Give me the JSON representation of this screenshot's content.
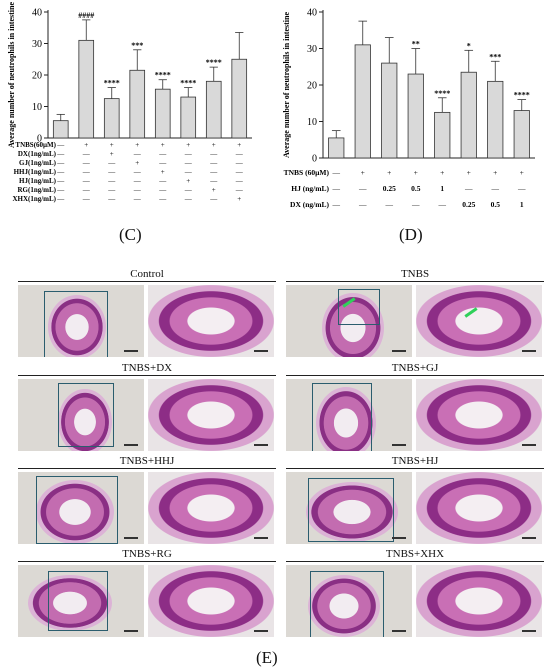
{
  "panel_labels": {
    "c": "(C)",
    "d": "(D)",
    "e": "(E)"
  },
  "chart_data": [
    {
      "panel": "C",
      "type": "bar",
      "ylabel": "Average number of neutrophils in intestine",
      "ylim": [
        0,
        40
      ],
      "yticks": [
        0,
        10,
        20,
        30,
        40
      ],
      "values": [
        5.5,
        31,
        12.5,
        21.5,
        15.5,
        13,
        18,
        25
      ],
      "errors": [
        2,
        6.5,
        3.5,
        6.5,
        3,
        3,
        4.5,
        8.5
      ],
      "significance": [
        "",
        "####",
        "****",
        "***",
        "****",
        "****",
        "****",
        ""
      ],
      "condition_rows": [
        {
          "label": "TNBS(60µM)",
          "marks": [
            "—",
            "+",
            "+",
            "+",
            "+",
            "+",
            "+",
            "+"
          ]
        },
        {
          "label": "DX(1ng/mL)",
          "marks": [
            "—",
            "—",
            "+",
            "—",
            "—",
            "—",
            "—",
            "—"
          ]
        },
        {
          "label": "GJ(1ng/mL)",
          "marks": [
            "—",
            "—",
            "—",
            "+",
            "—",
            "—",
            "—",
            "—"
          ]
        },
        {
          "label": "HHJ(1ng/mL)",
          "marks": [
            "—",
            "—",
            "—",
            "—",
            "+",
            "—",
            "—",
            "—"
          ]
        },
        {
          "label": "HJ(1ng/mL)",
          "marks": [
            "—",
            "—",
            "—",
            "—",
            "—",
            "+",
            "—",
            "—"
          ]
        },
        {
          "label": "RG(1ng/mL)",
          "marks": [
            "—",
            "—",
            "—",
            "—",
            "—",
            "—",
            "+",
            "—"
          ]
        },
        {
          "label": "XHX(1ng/mL)",
          "marks": [
            "—",
            "—",
            "—",
            "—",
            "—",
            "—",
            "—",
            "+"
          ]
        }
      ]
    },
    {
      "panel": "D",
      "type": "bar",
      "ylabel": "Average number of neutrophils in intestine",
      "ylim": [
        0,
        40
      ],
      "yticks": [
        0,
        10,
        20,
        30,
        40
      ],
      "values": [
        5.5,
        31,
        26,
        23,
        12.5,
        23.5,
        21,
        13
      ],
      "errors": [
        2,
        6.5,
        7,
        7,
        4,
        6,
        5.5,
        3
      ],
      "significance": [
        "",
        "",
        "",
        "**",
        "****",
        "*",
        "***",
        "****"
      ],
      "condition_rows": [
        {
          "label": "TNBS (60µM)",
          "marks": [
            "—",
            "+",
            "+",
            "+",
            "+",
            "+",
            "+",
            "+"
          ]
        },
        {
          "label": "HJ (ng/mL)",
          "marks": [
            "—",
            "—",
            "0.25",
            "0.5",
            "1",
            "—",
            "—",
            "—"
          ]
        },
        {
          "label": "DX (ng/mL)",
          "marks": [
            "—",
            "—",
            "—",
            "—",
            "—",
            "0.25",
            "0.5",
            "1"
          ]
        }
      ]
    }
  ],
  "histology": [
    {
      "title": "Control"
    },
    {
      "title": "TNBS"
    },
    {
      "title": "TNBS+DX"
    },
    {
      "title": "TNBS+GJ"
    },
    {
      "title": "TNBS+HHJ"
    },
    {
      "title": "TNBS+HJ"
    },
    {
      "title": "TNBS+RG"
    },
    {
      "title": "TNBS+XHX"
    }
  ],
  "colors": {
    "bar_fill": "#d9d9d9",
    "bar_stroke": "#333333",
    "he_stain_dark": "#8a2f84",
    "he_stain_light": "#c36cb0",
    "inset_box": "#2b5d6e",
    "arrow": "#2fd05a"
  }
}
